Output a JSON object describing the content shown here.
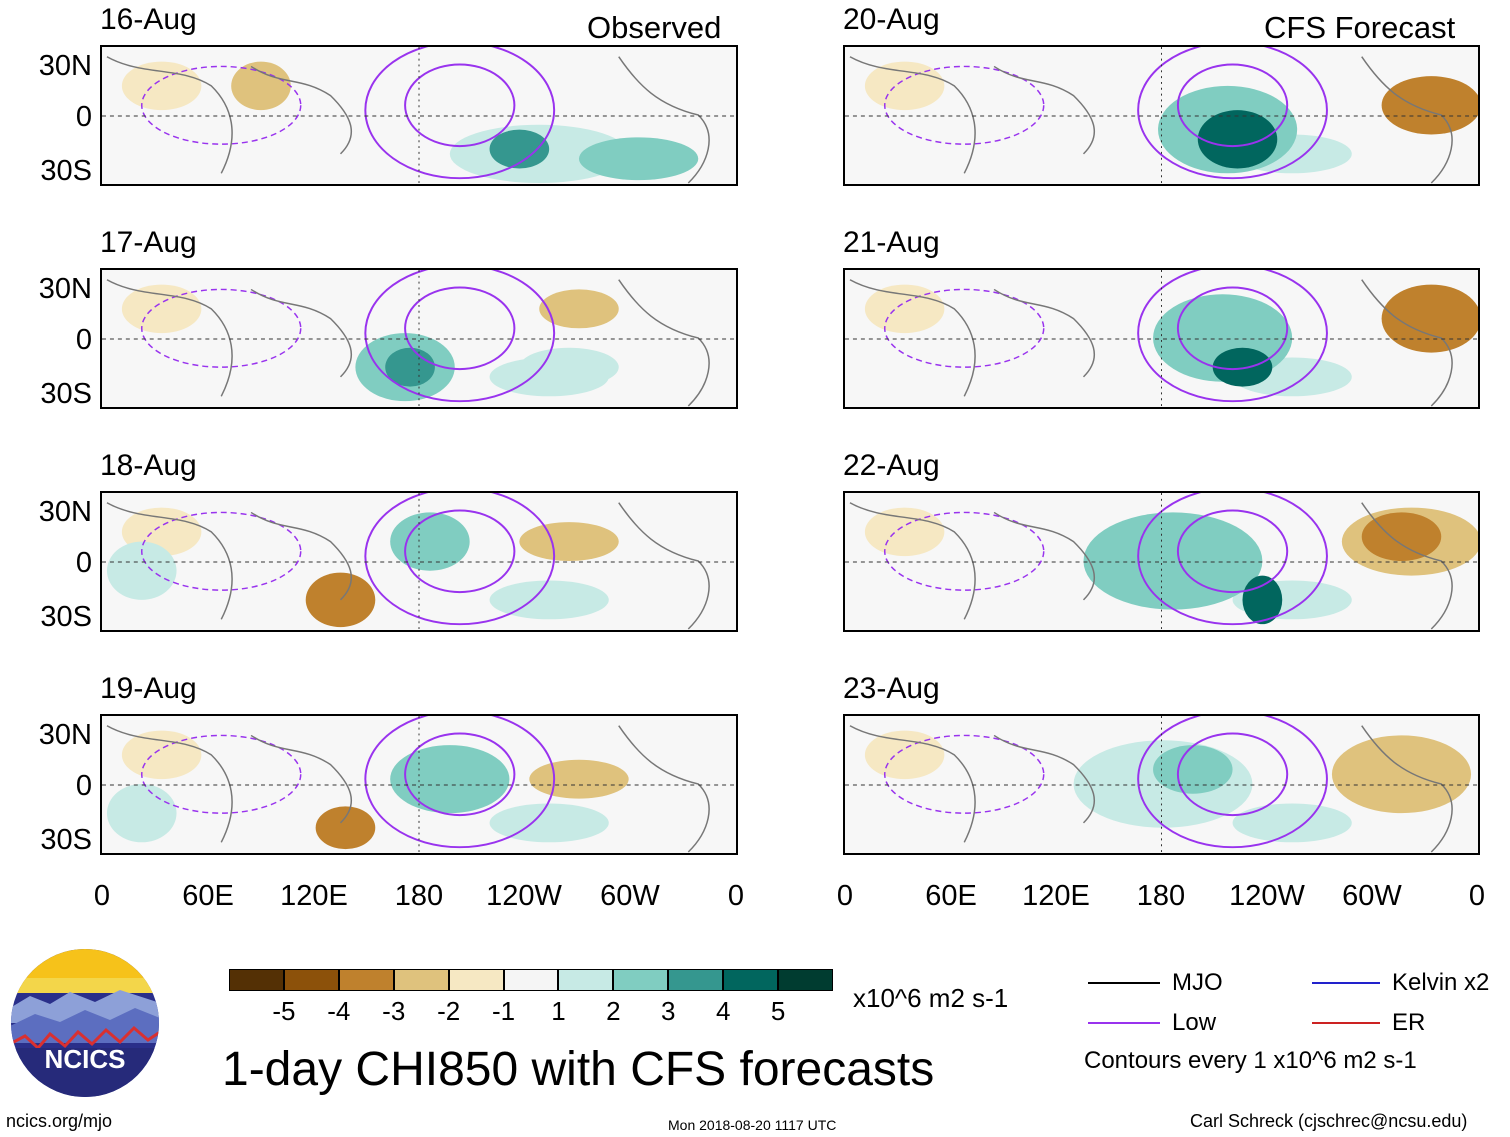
{
  "observed_header": "Observed",
  "forecast_header": "CFS Forecast",
  "panels_left": [
    {
      "date": "16-Aug"
    },
    {
      "date": "17-Aug"
    },
    {
      "date": "18-Aug"
    },
    {
      "date": "19-Aug"
    }
  ],
  "panels_right": [
    {
      "date": "20-Aug"
    },
    {
      "date": "21-Aug"
    },
    {
      "date": "22-Aug"
    },
    {
      "date": "23-Aug"
    }
  ],
  "lat_labels": [
    "30N",
    "0",
    "30S"
  ],
  "lon_labels": [
    "0",
    "60E",
    "120E",
    "180",
    "120W",
    "60W",
    "0"
  ],
  "colorbar": {
    "ticks": [
      "-5",
      "-4",
      "-3",
      "-2",
      "-1",
      "1",
      "2",
      "3",
      "4",
      "5"
    ],
    "colors": [
      "#543005",
      "#8c510a",
      "#bf812d",
      "#dfc27d",
      "#f6e8c3",
      "#f5f5f5",
      "#c7eae5",
      "#80cdc1",
      "#35978f",
      "#01665e",
      "#003c30"
    ],
    "units": "x10^6 m2 s-1"
  },
  "title": "1-day CHI850 with CFS forecasts",
  "legend": {
    "mjo": "MJO",
    "low": "Low",
    "kelvin": "Kelvin x2",
    "er": "ER",
    "contour_note": "Contours every 1 x10^6 m2 s-1",
    "colors": {
      "mjo": "#000000",
      "low": "#9933ee",
      "kelvin": "#2222cc",
      "er": "#cc2222"
    }
  },
  "logo_text": "NCICS",
  "footer": {
    "left": "ncics.org/mjo",
    "center": "Mon 2018-08-20 1117 UTC",
    "right": "Carl Schreck (cjschrec@ncsu.edu)"
  }
}
